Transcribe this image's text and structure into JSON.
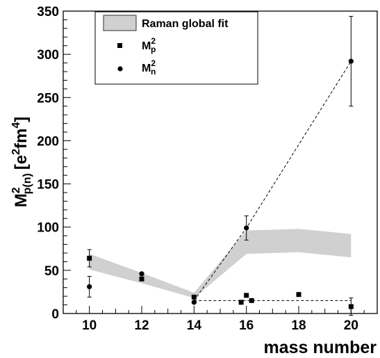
{
  "chart_data": {
    "type": "scatter",
    "xlabel": "mass number",
    "ylabel": {
      "base": "M",
      "sup": "2",
      "sub": "p(n)",
      "unit": "[e",
      "unit_sup1": "2",
      "unit_mid": "fm",
      "unit_sup2": "4",
      "unit_end": "]"
    },
    "xlim": [
      9,
      21
    ],
    "ylim": [
      0,
      350
    ],
    "xticks": [
      10,
      12,
      14,
      16,
      18,
      20
    ],
    "yticks": [
      0,
      50,
      100,
      150,
      200,
      250,
      300,
      350
    ],
    "legend": {
      "placement": "top-left",
      "entries": [
        {
          "label": "Raman global fit",
          "marker": "band",
          "color": "#d0d0d0"
        },
        {
          "label_base": "M",
          "label_sup": "2",
          "label_sub": "p",
          "marker": "square"
        },
        {
          "label_base": "M",
          "label_sup": "2",
          "label_sub": "n",
          "marker": "circle"
        }
      ]
    },
    "band": {
      "name": "Raman global fit",
      "color": "#d0d0d0",
      "x": [
        10,
        12,
        14,
        16,
        18,
        20
      ],
      "lower": [
        51,
        35,
        18,
        69,
        71,
        65
      ],
      "upper": [
        69,
        47,
        24,
        96,
        98,
        92
      ]
    },
    "series": [
      {
        "name": "Mp2",
        "marker": "square",
        "points": [
          {
            "x": 10,
            "y": 64,
            "err": 10
          },
          {
            "x": 12,
            "y": 40
          },
          {
            "x": 14,
            "y": 19
          },
          {
            "x": 15.8,
            "y": 13
          },
          {
            "x": 16,
            "y": 21
          },
          {
            "x": 16.2,
            "y": 15
          },
          {
            "x": 18,
            "y": 22
          },
          {
            "x": 20,
            "y": 8,
            "err": 10
          }
        ]
      },
      {
        "name": "Mn2",
        "marker": "circle",
        "points": [
          {
            "x": 10,
            "y": 31,
            "err": 12
          },
          {
            "x": 12,
            "y": 46
          },
          {
            "x": 14,
            "y": 13
          },
          {
            "x": 16,
            "y": 99,
            "err": 14
          },
          {
            "x": 20,
            "y": 292,
            "err": 52
          }
        ]
      }
    ],
    "lines": [
      {
        "name": "Mn2 trend",
        "style": "dashed",
        "points": [
          [
            14,
            15
          ],
          [
            16,
            99
          ],
          [
            20,
            292
          ]
        ]
      },
      {
        "name": "Mp2 trend",
        "style": "dashed",
        "points": [
          [
            14,
            15
          ],
          [
            20,
            15
          ]
        ]
      }
    ]
  }
}
